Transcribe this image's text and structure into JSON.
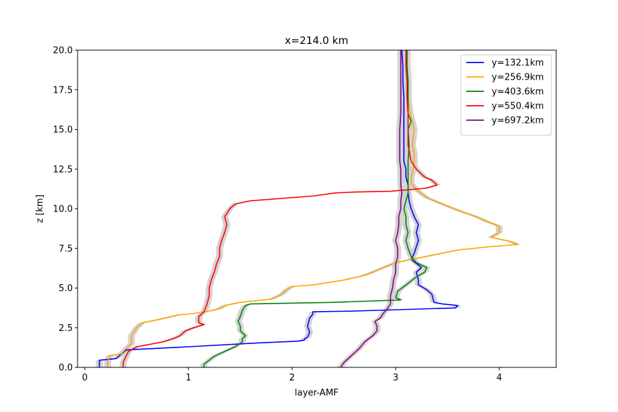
{
  "chart_data": {
    "type": "line",
    "title": "x=214.0 km",
    "xlabel": "layer-AMF",
    "ylabel": "z [km]",
    "xlim": [
      -0.07,
      4.55
    ],
    "ylim": [
      0,
      20
    ],
    "xticks": [
      0,
      1,
      2,
      3,
      4
    ],
    "yticks": [
      0.0,
      2.5,
      5.0,
      7.5,
      10.0,
      12.5,
      15.0,
      17.5,
      20.0
    ],
    "xtick_labels": [
      "0",
      "1",
      "2",
      "3",
      "4"
    ],
    "ytick_labels": [
      "0.0",
      "2.5",
      "5.0",
      "7.5",
      "10.0",
      "12.5",
      "15.0",
      "17.5",
      "20.0"
    ],
    "grid": false,
    "legend_position": "upper right",
    "uncertainty_band_color": "#d3d3d3",
    "series": [
      {
        "name": "y=132.1km",
        "color": "#0000ff",
        "points": [
          [
            0.14,
            0
          ],
          [
            0.14,
            0.45
          ],
          [
            0.3,
            0.55
          ],
          [
            0.4,
            1.1
          ],
          [
            1.0,
            1.3
          ],
          [
            1.7,
            1.55
          ],
          [
            2.05,
            1.65
          ],
          [
            2.12,
            1.72
          ],
          [
            2.12,
            1.8
          ],
          [
            2.15,
            1.9
          ],
          [
            2.17,
            2.2
          ],
          [
            2.15,
            2.6
          ],
          [
            2.17,
            3.1
          ],
          [
            2.2,
            3.35
          ],
          [
            2.2,
            3.5
          ],
          [
            2.6,
            3.55
          ],
          [
            3.58,
            3.75
          ],
          [
            3.6,
            3.9
          ],
          [
            3.45,
            4.0
          ],
          [
            3.37,
            4.1
          ],
          [
            3.35,
            4.6
          ],
          [
            3.3,
            4.9
          ],
          [
            3.22,
            5.2
          ],
          [
            3.22,
            5.5
          ],
          [
            3.2,
            6.0
          ],
          [
            3.25,
            6.3
          ],
          [
            3.15,
            6.8
          ],
          [
            3.18,
            7.2
          ],
          [
            3.2,
            7.6
          ],
          [
            3.22,
            8.0
          ],
          [
            3.2,
            8.5
          ],
          [
            3.22,
            9.0
          ],
          [
            3.18,
            9.5
          ],
          [
            3.15,
            10.0
          ],
          [
            3.13,
            10.5
          ],
          [
            3.12,
            11.0
          ],
          [
            3.12,
            11.5
          ],
          [
            3.1,
            12.0
          ],
          [
            3.1,
            12.5
          ],
          [
            3.08,
            13.0
          ],
          [
            3.08,
            14.0
          ],
          [
            3.08,
            15.0
          ],
          [
            3.08,
            16.0
          ],
          [
            3.08,
            17.0
          ],
          [
            3.07,
            18.0
          ],
          [
            3.07,
            19.0
          ],
          [
            3.06,
            20.0
          ]
        ]
      },
      {
        "name": "y=256.9km",
        "color": "#ffa500",
        "points": [
          [
            0.22,
            0
          ],
          [
            0.22,
            0.4
          ],
          [
            0.24,
            0.75
          ],
          [
            0.35,
            0.85
          ],
          [
            0.4,
            1.2
          ],
          [
            0.45,
            1.5
          ],
          [
            0.45,
            2.0
          ],
          [
            0.5,
            2.5
          ],
          [
            0.55,
            2.8
          ],
          [
            0.7,
            3.0
          ],
          [
            0.9,
            3.3
          ],
          [
            1.05,
            3.4
          ],
          [
            1.2,
            3.55
          ],
          [
            1.3,
            3.7
          ],
          [
            1.35,
            3.9
          ],
          [
            1.5,
            4.1
          ],
          [
            1.8,
            4.3
          ],
          [
            1.9,
            4.6
          ],
          [
            1.95,
            4.9
          ],
          [
            2.0,
            5.1
          ],
          [
            2.2,
            5.2
          ],
          [
            2.5,
            5.5
          ],
          [
            2.7,
            5.8
          ],
          [
            2.85,
            6.2
          ],
          [
            3.0,
            6.6
          ],
          [
            3.3,
            7.0
          ],
          [
            3.6,
            7.4
          ],
          [
            3.9,
            7.6
          ],
          [
            4.18,
            7.75
          ],
          [
            4.1,
            7.95
          ],
          [
            3.92,
            8.2
          ],
          [
            4.0,
            8.5
          ],
          [
            4.0,
            8.9
          ],
          [
            3.88,
            9.2
          ],
          [
            3.78,
            9.5
          ],
          [
            3.6,
            9.9
          ],
          [
            3.45,
            10.3
          ],
          [
            3.3,
            10.7
          ],
          [
            3.2,
            11.2
          ],
          [
            3.15,
            11.6
          ],
          [
            3.15,
            12.0
          ],
          [
            3.17,
            12.5
          ],
          [
            3.18,
            13.0
          ],
          [
            3.18,
            13.5
          ],
          [
            3.16,
            14.0
          ],
          [
            3.18,
            15.0
          ],
          [
            3.14,
            16.0
          ],
          [
            3.12,
            17.0
          ],
          [
            3.12,
            18.0
          ],
          [
            3.11,
            19.0
          ],
          [
            3.11,
            20.0
          ]
        ]
      },
      {
        "name": "y=403.6km",
        "color": "#008000",
        "points": [
          [
            1.15,
            0
          ],
          [
            1.15,
            0.2
          ],
          [
            1.17,
            0.3
          ],
          [
            1.25,
            0.7
          ],
          [
            1.35,
            1.0
          ],
          [
            1.45,
            1.3
          ],
          [
            1.52,
            1.6
          ],
          [
            1.52,
            1.8
          ],
          [
            1.55,
            2.0
          ],
          [
            1.5,
            2.3
          ],
          [
            1.5,
            2.6
          ],
          [
            1.48,
            2.9
          ],
          [
            1.5,
            3.2
          ],
          [
            1.52,
            3.6
          ],
          [
            1.55,
            3.9
          ],
          [
            1.6,
            4.0
          ],
          [
            2.4,
            4.1
          ],
          [
            3.05,
            4.25
          ],
          [
            3.0,
            4.4
          ],
          [
            3.02,
            4.8
          ],
          [
            3.12,
            5.3
          ],
          [
            3.2,
            5.7
          ],
          [
            3.28,
            6.0
          ],
          [
            3.3,
            6.3
          ],
          [
            3.2,
            6.6
          ],
          [
            3.15,
            7.0
          ],
          [
            3.12,
            7.5
          ],
          [
            3.1,
            8.0
          ],
          [
            3.12,
            8.5
          ],
          [
            3.1,
            9.0
          ],
          [
            3.1,
            9.5
          ],
          [
            3.08,
            10.0
          ],
          [
            3.1,
            10.5
          ],
          [
            3.12,
            11.0
          ],
          [
            3.12,
            11.5
          ],
          [
            3.12,
            12.0
          ],
          [
            3.12,
            13.0
          ],
          [
            3.13,
            14.0
          ],
          [
            3.12,
            15.0
          ],
          [
            3.15,
            15.5
          ],
          [
            3.12,
            16.0
          ],
          [
            3.12,
            17.0
          ],
          [
            3.12,
            18.0
          ],
          [
            3.11,
            19.0
          ],
          [
            3.11,
            20.0
          ]
        ]
      },
      {
        "name": "y=550.4km",
        "color": "#ff0000",
        "points": [
          [
            0.37,
            0
          ],
          [
            0.37,
            0.3
          ],
          [
            0.39,
            0.6
          ],
          [
            0.42,
            1.0
          ],
          [
            0.5,
            1.3
          ],
          [
            0.75,
            1.6
          ],
          [
            0.85,
            1.8
          ],
          [
            0.92,
            2.0
          ],
          [
            0.97,
            2.3
          ],
          [
            1.05,
            2.5
          ],
          [
            1.15,
            2.7
          ],
          [
            1.1,
            2.8
          ],
          [
            1.1,
            3.2
          ],
          [
            1.15,
            3.5
          ],
          [
            1.18,
            4.0
          ],
          [
            1.2,
            4.5
          ],
          [
            1.2,
            5.0
          ],
          [
            1.22,
            5.5
          ],
          [
            1.25,
            6.0
          ],
          [
            1.27,
            6.5
          ],
          [
            1.3,
            7.0
          ],
          [
            1.3,
            7.5
          ],
          [
            1.32,
            8.0
          ],
          [
            1.35,
            8.5
          ],
          [
            1.37,
            9.0
          ],
          [
            1.35,
            9.5
          ],
          [
            1.4,
            10.0
          ],
          [
            1.45,
            10.3
          ],
          [
            1.6,
            10.5
          ],
          [
            2.2,
            10.8
          ],
          [
            2.42,
            11.0
          ],
          [
            2.6,
            11.05
          ],
          [
            2.95,
            11.1
          ],
          [
            3.3,
            11.3
          ],
          [
            3.4,
            11.5
          ],
          [
            3.35,
            11.8
          ],
          [
            3.28,
            12.0
          ],
          [
            3.2,
            12.5
          ],
          [
            3.15,
            13.0
          ],
          [
            3.12,
            14.0
          ],
          [
            3.12,
            15.0
          ],
          [
            3.12,
            16.0
          ],
          [
            3.11,
            17.0
          ],
          [
            3.11,
            18.0
          ],
          [
            3.1,
            19.0
          ],
          [
            3.1,
            20.0
          ]
        ]
      },
      {
        "name": "y=697.2km",
        "color": "#800080",
        "points": [
          [
            2.47,
            0
          ],
          [
            2.5,
            0.3
          ],
          [
            2.55,
            0.6
          ],
          [
            2.6,
            0.9
          ],
          [
            2.65,
            1.2
          ],
          [
            2.7,
            1.6
          ],
          [
            2.78,
            2.0
          ],
          [
            2.82,
            2.3
          ],
          [
            2.82,
            2.6
          ],
          [
            2.8,
            2.9
          ],
          [
            2.85,
            3.1
          ],
          [
            2.88,
            3.4
          ],
          [
            2.92,
            3.7
          ],
          [
            2.95,
            4.0
          ],
          [
            2.95,
            4.5
          ],
          [
            2.97,
            5.0
          ],
          [
            2.98,
            5.5
          ],
          [
            3.0,
            6.0
          ],
          [
            3.0,
            6.5
          ],
          [
            3.02,
            7.0
          ],
          [
            3.02,
            7.5
          ],
          [
            3.0,
            8.0
          ],
          [
            3.02,
            8.5
          ],
          [
            3.03,
            9.0
          ],
          [
            3.03,
            9.5
          ],
          [
            3.05,
            10.0
          ],
          [
            3.05,
            10.5
          ],
          [
            3.06,
            11.0
          ],
          [
            3.05,
            11.5
          ],
          [
            3.05,
            12.0
          ],
          [
            3.05,
            12.5
          ],
          [
            3.04,
            13.0
          ],
          [
            3.04,
            14.0
          ],
          [
            3.04,
            15.0
          ],
          [
            3.05,
            16.0
          ],
          [
            3.05,
            17.0
          ],
          [
            3.05,
            18.0
          ],
          [
            3.05,
            19.0
          ],
          [
            3.05,
            20.0
          ]
        ]
      }
    ]
  }
}
